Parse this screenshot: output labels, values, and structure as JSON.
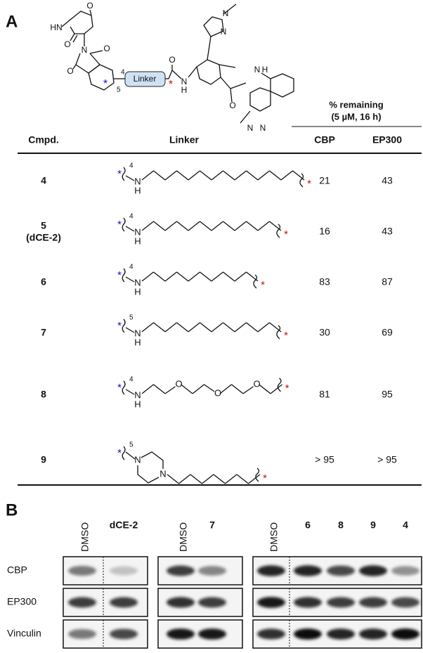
{
  "panel_a": {
    "label": "A",
    "structure": {
      "atoms": {
        "HN": "HN",
        "O": "O",
        "N": "N",
        "H": "H"
      },
      "linker_box": "Linker",
      "attach": "*",
      "positions": [
        "4",
        "5"
      ]
    },
    "table": {
      "percent_header": "% remaining",
      "condition": "(5 µM, 16 h)",
      "columns": [
        "Cmpd.",
        "Linker",
        "CBP",
        "EP300"
      ],
      "rows": [
        {
          "cmpd": "4",
          "position": "4",
          "cbp": 21,
          "ep300": 43
        },
        {
          "cmpd": "5",
          "alias": "(dCE-2)",
          "position": "4",
          "cbp": 16,
          "ep300": 43
        },
        {
          "cmpd": "6",
          "position": "4",
          "cbp": 83,
          "ep300": 87
        },
        {
          "cmpd": "7",
          "position": "5",
          "cbp": 30,
          "ep300": 69
        },
        {
          "cmpd": "8",
          "position": "4",
          "cbp": 81,
          "ep300": 95
        },
        {
          "cmpd": "9",
          "position": "5",
          "cbp": "> 95",
          "ep300": "> 95"
        }
      ]
    }
  },
  "panel_b": {
    "label": "B",
    "groups": [
      {
        "lanes": [
          "DMSO",
          "dCE-2"
        ]
      },
      {
        "lanes": [
          "DMSO",
          "7"
        ]
      },
      {
        "lanes": [
          "DMSO",
          "6",
          "8",
          "9",
          "4"
        ]
      }
    ],
    "rows": [
      "CBP",
      "EP300",
      "Vinculin"
    ]
  }
}
